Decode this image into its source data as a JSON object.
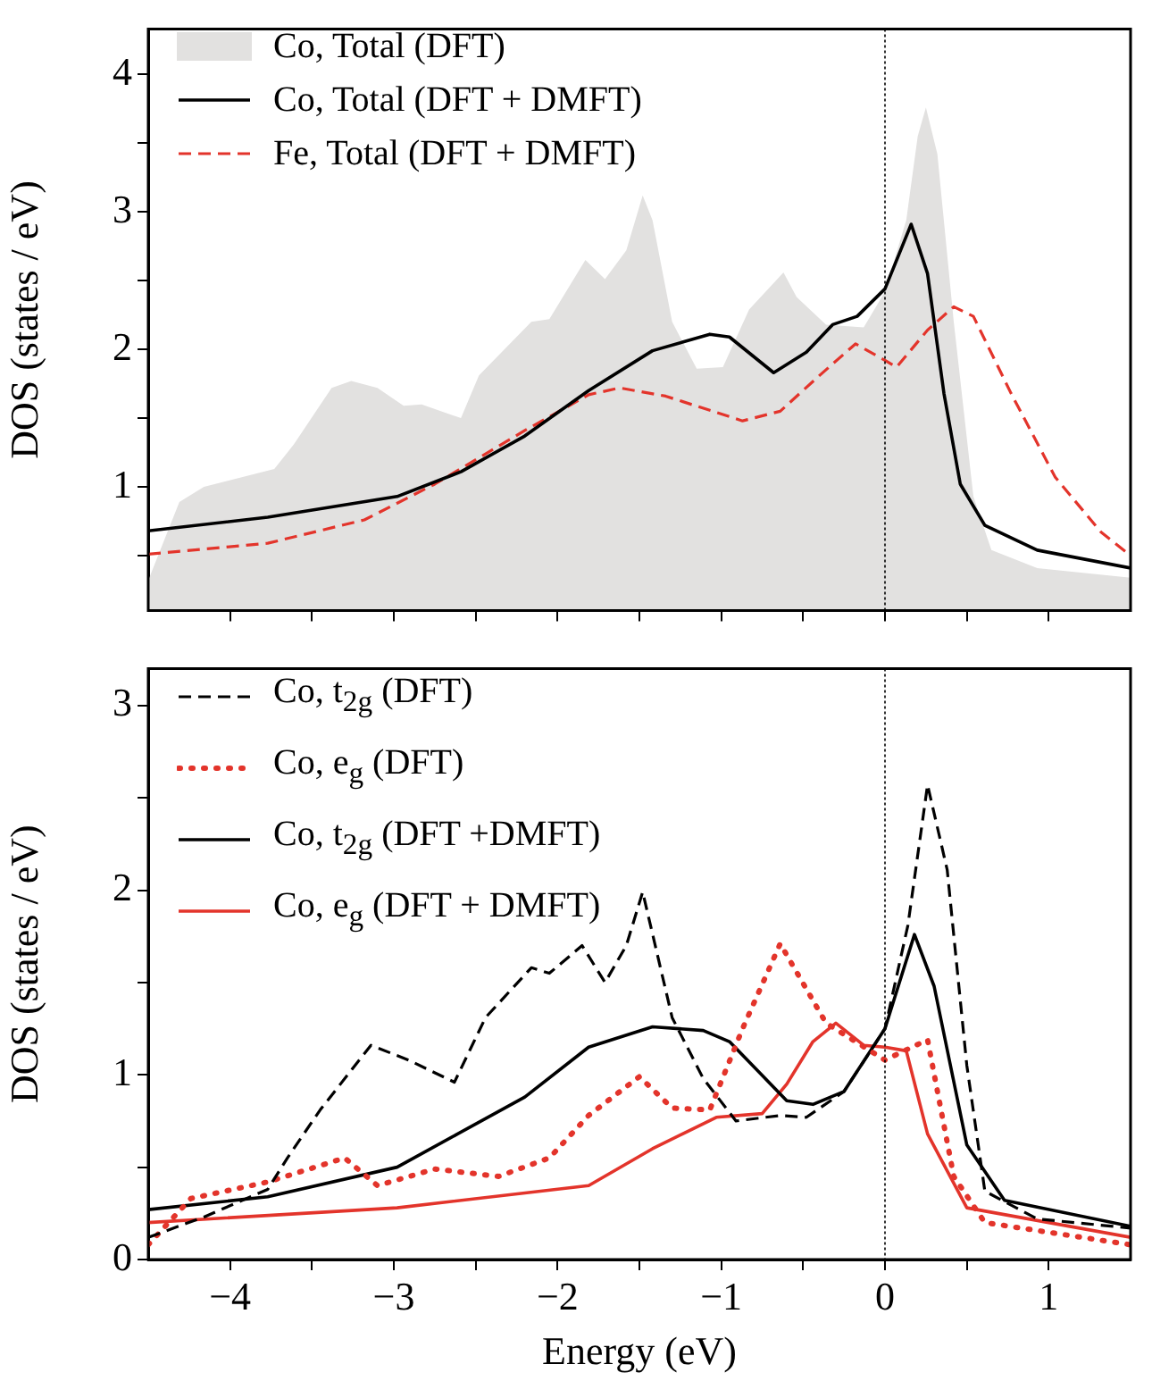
{
  "chart_data": [
    {
      "type": "line",
      "ylabel": "DOS (states / eV)",
      "xlim": [
        -4.5,
        1.5
      ],
      "ylim": [
        0.1,
        4.33
      ],
      "xticks": [
        -4,
        {
          "value": -3.5,
          "label": null
        },
        -3,
        {
          "value": -2.5,
          "label": null
        },
        -2,
        {
          "value": -1.5,
          "label": null
        },
        -1,
        {
          "value": -0.5,
          "label": null
        },
        0,
        {
          "value": 0.5,
          "label": null
        },
        1
      ],
      "yticks": [
        {
          "value": 0.5,
          "label": null
        },
        1,
        {
          "value": 1.5,
          "label": null
        },
        2,
        {
          "value": 2.5,
          "label": null
        },
        3,
        {
          "value": 3.5,
          "label": null
        },
        4
      ],
      "tick_labels": "y",
      "legend": "top left",
      "ref_lines": [
        {
          "axis": "x",
          "value": 0,
          "color": "#000000",
          "line_style": "dotted"
        }
      ],
      "series": [
        {
          "name": "Co, Total (DFT)",
          "type": "area",
          "color": "#e2e1e0",
          "x": [
            -4.5,
            -4.31,
            -4.16,
            -3.73,
            -3.61,
            -3.38,
            -3.26,
            -3.1,
            -2.94,
            -2.83,
            -2.59,
            -2.48,
            -2.16,
            -2.05,
            -1.83,
            -1.71,
            -1.58,
            -1.48,
            -1.42,
            -1.3,
            -1.15,
            -0.99,
            -0.83,
            -0.62,
            -0.54,
            -0.36,
            -0.13,
            0,
            0.13,
            0.2,
            0.25,
            0.32,
            0.42,
            0.54,
            0.65,
            0.93,
            1.5
          ],
          "values": [
            0.32,
            0.89,
            1.0,
            1.13,
            1.31,
            1.72,
            1.77,
            1.72,
            1.59,
            1.6,
            1.5,
            1.81,
            2.2,
            2.22,
            2.65,
            2.51,
            2.72,
            3.12,
            2.94,
            2.2,
            1.86,
            1.87,
            2.29,
            2.56,
            2.38,
            2.18,
            2.16,
            2.42,
            2.94,
            3.55,
            3.76,
            3.42,
            2.2,
            0.93,
            0.54,
            0.41,
            0.34
          ]
        },
        {
          "name": "Co, Total (DFT + DMFT)",
          "color": "#000000",
          "line_style": "solid",
          "x": [
            -4.5,
            -3.77,
            -2.98,
            -2.59,
            -2.2,
            -1.81,
            -1.42,
            -1.07,
            -0.95,
            -0.68,
            -0.48,
            -0.32,
            -0.17,
            0,
            0.16,
            0.26,
            0.36,
            0.46,
            0.61,
            0.93,
            1.5
          ],
          "values": [
            0.68,
            0.78,
            0.93,
            1.11,
            1.37,
            1.7,
            1.99,
            2.11,
            2.09,
            1.83,
            1.98,
            2.18,
            2.24,
            2.44,
            2.91,
            2.55,
            1.68,
            1.02,
            0.72,
            0.54,
            0.41
          ]
        },
        {
          "name": "Fe, Total (DFT + DMFT)",
          "color": "#e3342b",
          "line_style": "dashed",
          "x": [
            -4.5,
            -3.77,
            -3.18,
            -2.75,
            -2.2,
            -1.81,
            -1.62,
            -1.34,
            -0.87,
            -0.64,
            -0.4,
            -0.18,
            0,
            0.07,
            0.26,
            0.42,
            0.54,
            0.77,
            1.04,
            1.32,
            1.5
          ],
          "values": [
            0.51,
            0.59,
            0.76,
            1.02,
            1.41,
            1.67,
            1.72,
            1.66,
            1.48,
            1.55,
            1.81,
            2.04,
            1.92,
            1.87,
            2.14,
            2.31,
            2.24,
            1.68,
            1.07,
            0.67,
            0.5
          ]
        }
      ]
    },
    {
      "type": "line",
      "xlabel": "Energy (eV)",
      "ylabel": "DOS (states / eV)",
      "xlim": [
        -4.5,
        1.5
      ],
      "ylim": [
        0,
        3.2
      ],
      "xticks": [
        -4,
        {
          "value": -3.5,
          "label": null
        },
        -3,
        {
          "value": -2.5,
          "label": null
        },
        -2,
        {
          "value": -1.5,
          "label": null
        },
        -1,
        {
          "value": -0.5,
          "label": null
        },
        0,
        {
          "value": 0.5,
          "label": null
        },
        1
      ],
      "yticks": [
        0,
        {
          "value": 0.5,
          "label": null
        },
        1,
        {
          "value": 1.5,
          "label": null
        },
        2,
        {
          "value": 2.5,
          "label": null
        },
        3
      ],
      "legend": "top left",
      "ref_lines": [
        {
          "axis": "x",
          "value": 0,
          "color": "#000000",
          "line_style": "dotted"
        }
      ],
      "series": [
        {
          "name": "Co, t$_{2g}$ (DFT)",
          "color": "#000000",
          "line_style": "dashed",
          "x": [
            -4.5,
            -4.16,
            -3.77,
            -3.65,
            -3.45,
            -3.14,
            -2.91,
            -2.63,
            -2.44,
            -2.16,
            -2.05,
            -1.85,
            -1.71,
            -1.58,
            -1.48,
            -1.3,
            -1.11,
            -0.91,
            -0.64,
            -0.48,
            -0.25,
            0,
            0.14,
            0.26,
            0.38,
            0.5,
            0.61,
            0.93,
            1.5
          ],
          "values": [
            0.12,
            0.23,
            0.38,
            0.55,
            0.81,
            1.16,
            1.08,
            0.96,
            1.31,
            1.58,
            1.55,
            1.7,
            1.5,
            1.7,
            1.99,
            1.31,
            0.98,
            0.75,
            0.78,
            0.77,
            0.91,
            1.25,
            1.81,
            2.57,
            2.11,
            1.05,
            0.37,
            0.22,
            0.17
          ]
        },
        {
          "name": "Co, e$_{g}$ (DFT)",
          "color": "#e3342b",
          "line_style": "dotted",
          "x": [
            -4.5,
            -4.24,
            -3.77,
            -3.3,
            -3.1,
            -2.75,
            -2.36,
            -2.05,
            -1.81,
            -1.5,
            -1.3,
            -1.07,
            -0.87,
            -0.64,
            -0.36,
            0,
            0.26,
            0.42,
            0.61,
            1.5
          ],
          "values": [
            0.08,
            0.33,
            0.42,
            0.55,
            0.4,
            0.49,
            0.45,
            0.55,
            0.78,
            0.99,
            0.82,
            0.81,
            1.25,
            1.71,
            1.28,
            1.08,
            1.19,
            0.45,
            0.2,
            0.08
          ]
        },
        {
          "name": "Co, t$_{2g}$ (DFT +DMFT)",
          "color": "#000000",
          "line_style": "solid",
          "x": [
            -4.5,
            -3.77,
            -2.98,
            -2.2,
            -1.81,
            -1.42,
            -1.11,
            -0.95,
            -0.6,
            -0.44,
            -0.25,
            0,
            0.18,
            0.3,
            0.5,
            0.73,
            1.5
          ],
          "values": [
            0.27,
            0.34,
            0.5,
            0.88,
            1.15,
            1.26,
            1.24,
            1.18,
            0.86,
            0.84,
            0.91,
            1.25,
            1.76,
            1.48,
            0.62,
            0.32,
            0.18
          ]
        },
        {
          "name": "Co, e$_{g}$ (DFT + DMFT)",
          "color": "#e3342b",
          "line_style": "solid",
          "x": [
            -4.5,
            -2.98,
            -1.81,
            -1.42,
            -1.03,
            -0.75,
            -0.6,
            -0.44,
            -0.3,
            -0.13,
            0,
            0.13,
            0.26,
            0.5,
            1.5
          ],
          "values": [
            0.2,
            0.28,
            0.4,
            0.6,
            0.77,
            0.79,
            0.95,
            1.18,
            1.28,
            1.16,
            1.15,
            1.13,
            0.68,
            0.28,
            0.12
          ]
        }
      ]
    }
  ]
}
